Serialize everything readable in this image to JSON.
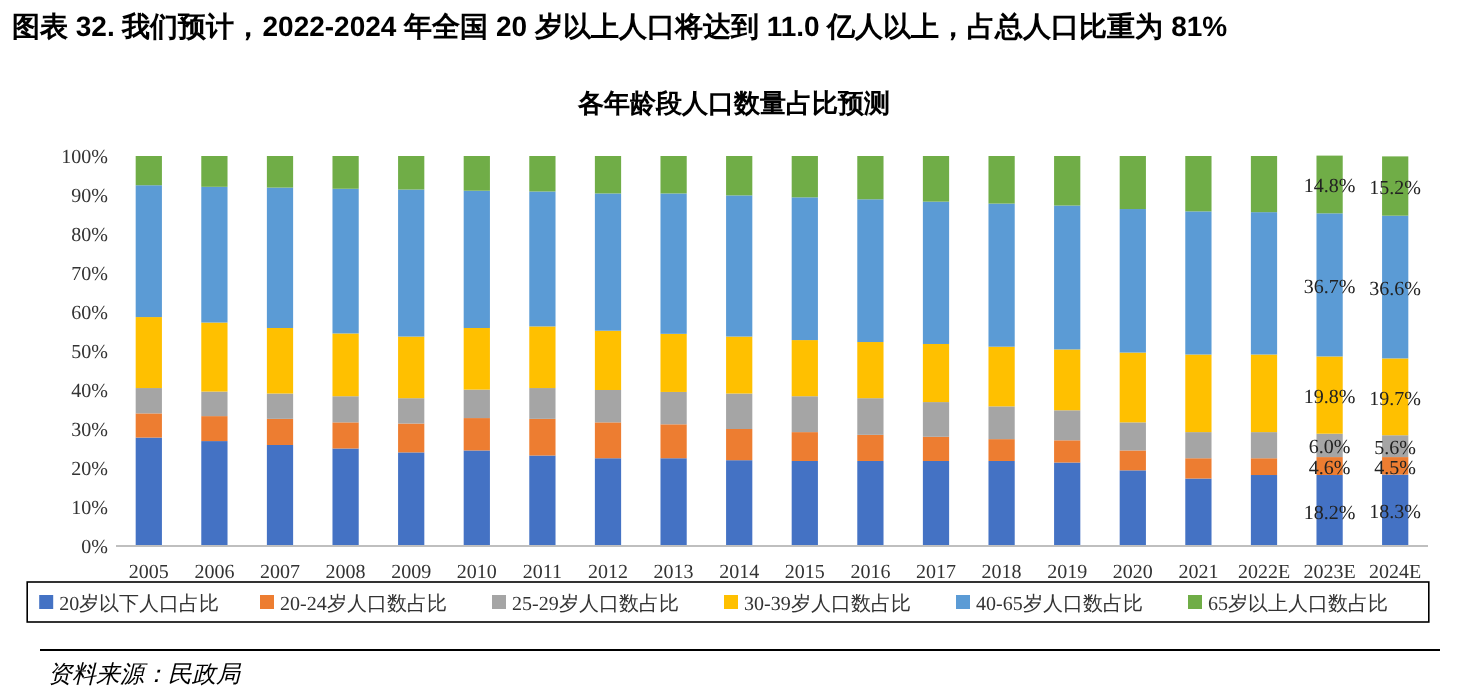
{
  "chart_data": {
    "type": "bar",
    "stacked": true,
    "title": "图表 32. 我们预计，2022-2024 年全国 20 岁以上人口将达到 11.0 亿人以上，占总人口比重为 81%",
    "subtitle": "各年龄段人口数量占比预测",
    "annotations": [
      "资料来源：民政局"
    ],
    "categories": [
      "2005",
      "2006",
      "2007",
      "2008",
      "2009",
      "2010",
      "2011",
      "2012",
      "2013",
      "2014",
      "2015",
      "2016",
      "2017",
      "2018",
      "2019",
      "2020",
      "2021",
      "2022E",
      "2023E",
      "2024E"
    ],
    "ylim": [
      0,
      100
    ],
    "yticks": [
      {
        "value": 0,
        "label": "0%"
      },
      {
        "value": 10,
        "label": "10%"
      },
      {
        "value": 20,
        "label": "20%"
      },
      {
        "value": 30,
        "label": "30%"
      },
      {
        "value": 40,
        "label": "40%"
      },
      {
        "value": 50,
        "label": "50%"
      },
      {
        "value": 60,
        "label": "60%"
      },
      {
        "value": 70,
        "label": "70%"
      },
      {
        "value": 80,
        "label": "80%"
      },
      {
        "value": 90,
        "label": "90%"
      },
      {
        "value": 100,
        "label": "100%"
      }
    ],
    "grid": false,
    "legend": "bottom",
    "series": [
      {
        "name": "20岁以下人口占比",
        "color": "#4472c4",
        "values": [
          27.8,
          26.9,
          25.9,
          25.0,
          24.0,
          24.5,
          23.2,
          22.5,
          22.5,
          22.0,
          21.8,
          21.8,
          21.8,
          21.8,
          21.4,
          19.4,
          17.3,
          18.2,
          18.2,
          18.3
        ],
        "value_labels": [
          null,
          null,
          null,
          null,
          null,
          null,
          null,
          null,
          null,
          null,
          null,
          null,
          null,
          null,
          null,
          null,
          null,
          null,
          "18.2%",
          "18.3%"
        ]
      },
      {
        "name": "20-24岁人口数占比",
        "color": "#ed7d31",
        "values": [
          6.2,
          6.4,
          6.7,
          6.7,
          7.4,
          8.3,
          9.4,
          9.2,
          8.7,
          8.0,
          7.4,
          6.7,
          6.2,
          5.6,
          5.7,
          5.1,
          5.2,
          4.3,
          4.6,
          4.5
        ],
        "value_labels": [
          null,
          null,
          null,
          null,
          null,
          null,
          null,
          null,
          null,
          null,
          null,
          null,
          null,
          null,
          null,
          null,
          null,
          null,
          "4.6%",
          "4.5%"
        ]
      },
      {
        "name": "25-29岁人口数占比",
        "color": "#a5a5a5",
        "values": [
          6.5,
          6.3,
          6.5,
          6.7,
          6.5,
          7.3,
          7.9,
          8.3,
          8.3,
          9.1,
          9.2,
          9.4,
          8.9,
          8.4,
          7.7,
          7.2,
          6.7,
          6.7,
          6.0,
          5.6
        ],
        "value_labels": [
          null,
          null,
          null,
          null,
          null,
          null,
          null,
          null,
          null,
          null,
          null,
          null,
          null,
          null,
          null,
          null,
          null,
          null,
          "6.0%",
          "5.6%"
        ]
      },
      {
        "name": "30-39岁人口数占比",
        "color": "#ffc000",
        "values": [
          18.2,
          17.7,
          16.8,
          16.1,
          15.8,
          15.8,
          15.8,
          15.2,
          14.9,
          14.6,
          14.4,
          14.4,
          14.9,
          15.3,
          15.6,
          17.9,
          19.9,
          19.9,
          19.8,
          19.7
        ],
        "value_labels": [
          null,
          null,
          null,
          null,
          null,
          null,
          null,
          null,
          null,
          null,
          null,
          null,
          null,
          null,
          null,
          null,
          null,
          null,
          "19.8%",
          "19.7%"
        ]
      },
      {
        "name": "40-65岁人口数占比",
        "color": "#5b9bd5",
        "values": [
          33.8,
          34.8,
          36.0,
          37.1,
          37.7,
          35.2,
          34.6,
          35.2,
          36.0,
          36.2,
          36.6,
          36.6,
          36.5,
          36.7,
          36.9,
          36.8,
          36.7,
          36.5,
          36.7,
          36.6
        ],
        "value_labels": [
          null,
          null,
          null,
          null,
          null,
          null,
          null,
          null,
          null,
          null,
          null,
          null,
          null,
          null,
          null,
          null,
          null,
          null,
          "36.7%",
          "36.6%"
        ]
      },
      {
        "name": "65岁以上人口数占比",
        "color": "#70ad47",
        "values": [
          7.5,
          7.9,
          8.1,
          8.4,
          8.6,
          8.9,
          9.1,
          9.6,
          9.6,
          10.1,
          10.6,
          11.1,
          11.7,
          12.2,
          12.7,
          13.6,
          14.2,
          14.4,
          14.8,
          15.2
        ],
        "value_labels": [
          null,
          null,
          null,
          null,
          null,
          null,
          null,
          null,
          null,
          null,
          null,
          null,
          null,
          null,
          null,
          null,
          null,
          null,
          "14.8%",
          "15.2%"
        ]
      }
    ]
  }
}
